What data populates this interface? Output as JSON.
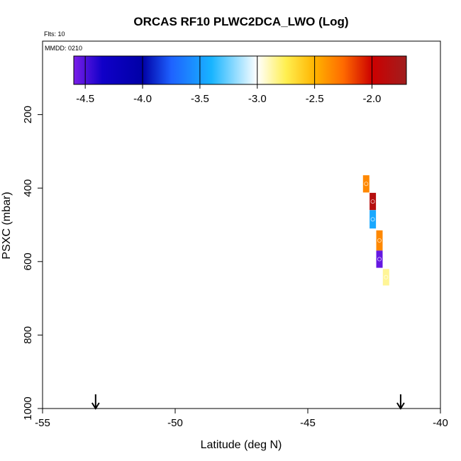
{
  "chart_data": {
    "type": "scatter",
    "title": "ORCAS RF10 PLWC2DCA_LWO (Log)",
    "flights_label": "Flts: 10",
    "date_label": "MMDD: 0210",
    "xlabel": "Latitude (deg N)",
    "ylabel": "PSXC (mbar)",
    "xlim": [
      -55,
      -40
    ],
    "ylim": [
      1000,
      0
    ],
    "x_ticks": [
      -55,
      -50,
      -45,
      -40
    ],
    "x_tick_labels": [
      "-55",
      "-50",
      "-45",
      "-40"
    ],
    "y_ticks": [
      200,
      400,
      600,
      800,
      1000
    ],
    "y_tick_labels": [
      "200",
      "400",
      "600",
      "800",
      "1000"
    ],
    "colorbar": {
      "min": -4.6,
      "max": -1.7,
      "ticks": [
        -4.5,
        -4.0,
        -3.5,
        -3.0,
        -2.5,
        -2.0
      ],
      "tick_labels": [
        "-4.5",
        "-4.0",
        "-3.5",
        "-3.0",
        "-2.5",
        "-2.0"
      ],
      "color_stops": [
        {
          "value": -4.6,
          "color": "#7a1ee8"
        },
        {
          "value": -4.35,
          "color": "#1000c8"
        },
        {
          "value": -4.0,
          "color": "#0000a6"
        },
        {
          "value": -3.75,
          "color": "#1e62ff"
        },
        {
          "value": -3.4,
          "color": "#18b4ff"
        },
        {
          "value": -3.0,
          "color": "#ffffff"
        },
        {
          "value": -2.75,
          "color": "#ffef50"
        },
        {
          "value": -2.5,
          "color": "#ffb400"
        },
        {
          "value": -2.25,
          "color": "#ff6a00"
        },
        {
          "value": -2.0,
          "color": "#cc0000"
        },
        {
          "value": -1.7,
          "color": "#a01e1e"
        }
      ]
    },
    "points": [
      {
        "lat": -42.8,
        "p_top": 365,
        "p_bottom": 412,
        "log_value": -2.35
      },
      {
        "lat": -42.55,
        "p_top": 413,
        "p_bottom": 460,
        "log_value": -1.85
      },
      {
        "lat": -42.55,
        "p_top": 460,
        "p_bottom": 510,
        "log_value": -3.45
      },
      {
        "lat": -42.3,
        "p_top": 515,
        "p_bottom": 570,
        "log_value": -2.35
      },
      {
        "lat": -42.3,
        "p_top": 570,
        "p_bottom": 617,
        "log_value": -4.55
      },
      {
        "lat": -42.05,
        "p_top": 620,
        "p_bottom": 665,
        "log_value": -2.85
      }
    ],
    "markers": [
      {
        "label": "flight-start-arrow",
        "lat": -53.0
      },
      {
        "label": "flight-end-arrow",
        "lat": -41.5
      }
    ]
  }
}
